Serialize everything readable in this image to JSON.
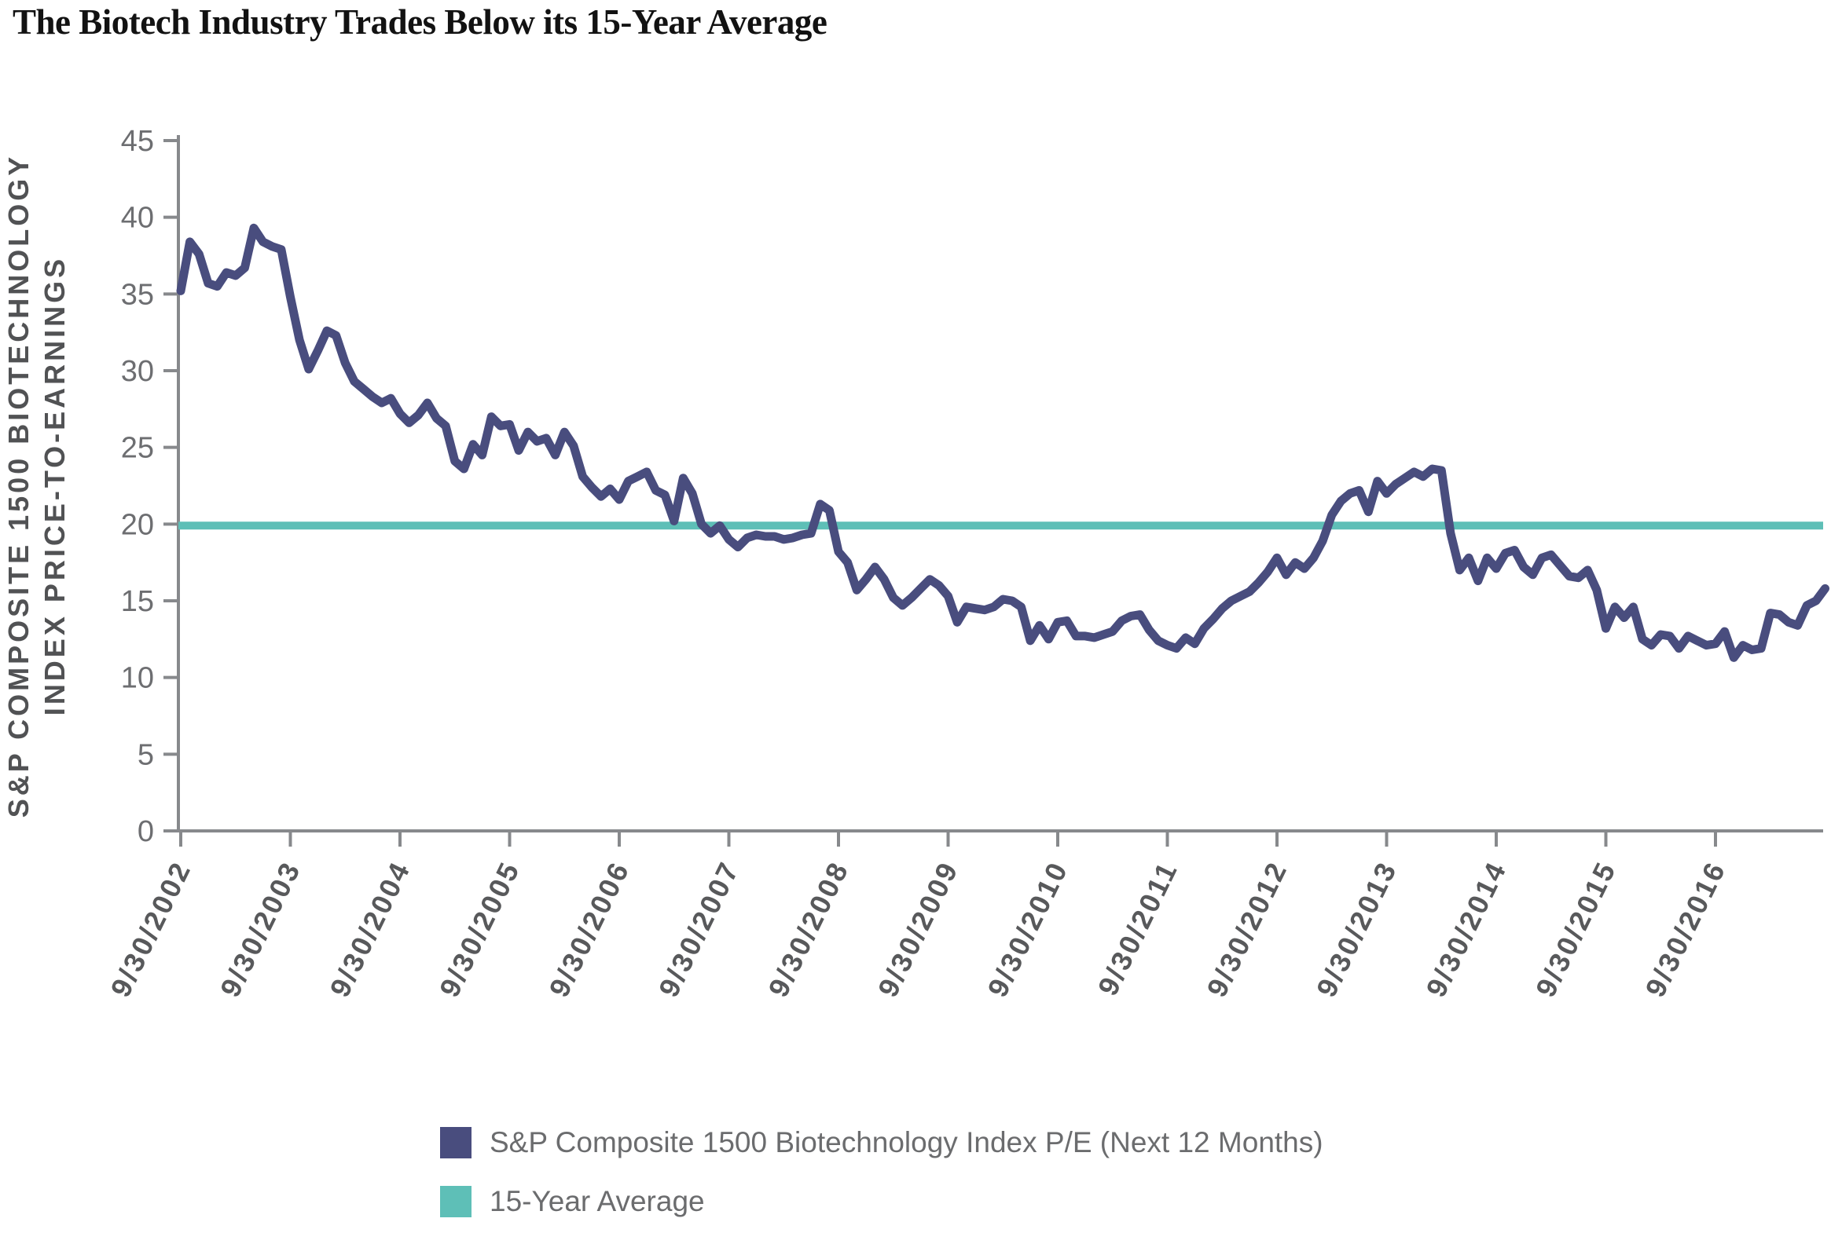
{
  "title": "The Biotech Industry Trades Below its 15-Year Average",
  "chart_data": {
    "type": "line",
    "title": "The Biotech Industry Trades Below its 15-Year Average",
    "ylabel_line1": "S&P COMPOSITE 1500 BIOTECHNOLOGY",
    "ylabel_line2": "INDEX PRICE-TO-EARNINGS",
    "xlabel": "",
    "y_axis": {
      "min": 0,
      "max": 45,
      "ticks": [
        0,
        5,
        10,
        15,
        20,
        25,
        30,
        35,
        40,
        45
      ]
    },
    "x_tick_labels": [
      "9/30/2002",
      "9/30/2003",
      "9/30/2004",
      "9/30/2005",
      "9/30/2006",
      "9/30/2007",
      "9/30/2008",
      "9/30/2009",
      "9/30/2010",
      "9/30/2011",
      "9/30/2012",
      "9/30/2013",
      "9/30/2014",
      "9/30/2015",
      "9/30/2016"
    ],
    "grid": false,
    "legend_position": "bottom",
    "series": [
      {
        "name": "S&P Composite 1500 Biotechnology Index P/E (Next 12 Months)",
        "color": "#494D7E",
        "start": "2002-09",
        "end": "2017-09",
        "frequency": "monthly",
        "values": [
          35.2,
          38.4,
          37.6,
          35.7,
          35.5,
          36.4,
          36.2,
          36.7,
          39.3,
          38.4,
          38.1,
          37.9,
          34.8,
          32.0,
          30.1,
          31.3,
          32.6,
          32.3,
          30.5,
          29.3,
          28.8,
          28.3,
          27.9,
          28.2,
          27.2,
          26.6,
          27.1,
          27.9,
          26.9,
          26.4,
          24.1,
          23.6,
          25.2,
          24.5,
          27.0,
          26.4,
          26.5,
          24.8,
          26.0,
          25.4,
          25.6,
          24.5,
          26.0,
          25.1,
          23.1,
          22.4,
          21.8,
          22.3,
          21.6,
          22.8,
          23.1,
          23.4,
          22.2,
          21.9,
          20.2,
          23.0,
          22.0,
          20.0,
          19.4,
          19.9,
          19.0,
          18.5,
          19.1,
          19.3,
          19.2,
          19.2,
          19.0,
          19.1,
          19.3,
          19.4,
          21.3,
          20.9,
          18.2,
          17.5,
          15.7,
          16.4,
          17.2,
          16.4,
          15.2,
          14.7,
          15.2,
          15.8,
          16.4,
          16.0,
          15.3,
          13.6,
          14.6,
          14.5,
          14.4,
          14.6,
          15.1,
          15.0,
          14.6,
          12.4,
          13.4,
          12.5,
          13.6,
          13.7,
          12.7,
          12.7,
          12.6,
          12.8,
          13.0,
          13.7,
          14.0,
          14.1,
          13.1,
          12.4,
          12.1,
          11.9,
          12.6,
          12.2,
          13.2,
          13.8,
          14.5,
          15.0,
          15.3,
          15.6,
          16.2,
          16.9,
          17.8,
          16.7,
          17.5,
          17.1,
          17.8,
          18.9,
          20.6,
          21.5,
          22.0,
          22.2,
          20.8,
          22.8,
          22.0,
          22.6,
          23.0,
          23.4,
          23.1,
          23.6,
          23.5,
          19.4,
          17.0,
          17.8,
          16.3,
          17.8,
          17.1,
          18.1,
          18.3,
          17.2,
          16.7,
          17.8,
          18.0,
          17.3,
          16.6,
          16.5,
          17.0,
          15.7,
          13.2,
          14.6,
          13.9,
          14.6,
          12.5,
          12.1,
          12.8,
          12.7,
          11.9,
          12.7,
          12.4,
          12.1,
          12.2,
          13.0,
          11.3,
          12.1,
          11.8,
          11.9,
          14.2,
          14.1,
          13.6,
          13.4,
          14.7,
          15.0,
          15.8
        ]
      },
      {
        "name": "15-Year Average",
        "color": "#5EBFB7",
        "value": 19.9
      }
    ]
  },
  "colors": {
    "series_line": "#494D7E",
    "average_line": "#5EBFB7",
    "axis": "#87898c",
    "tick_label": "#6d6e71",
    "date_label": "#58595b",
    "axis_title": "#515254",
    "legend_text": "#6b6c6e",
    "title_text": "#121212"
  }
}
